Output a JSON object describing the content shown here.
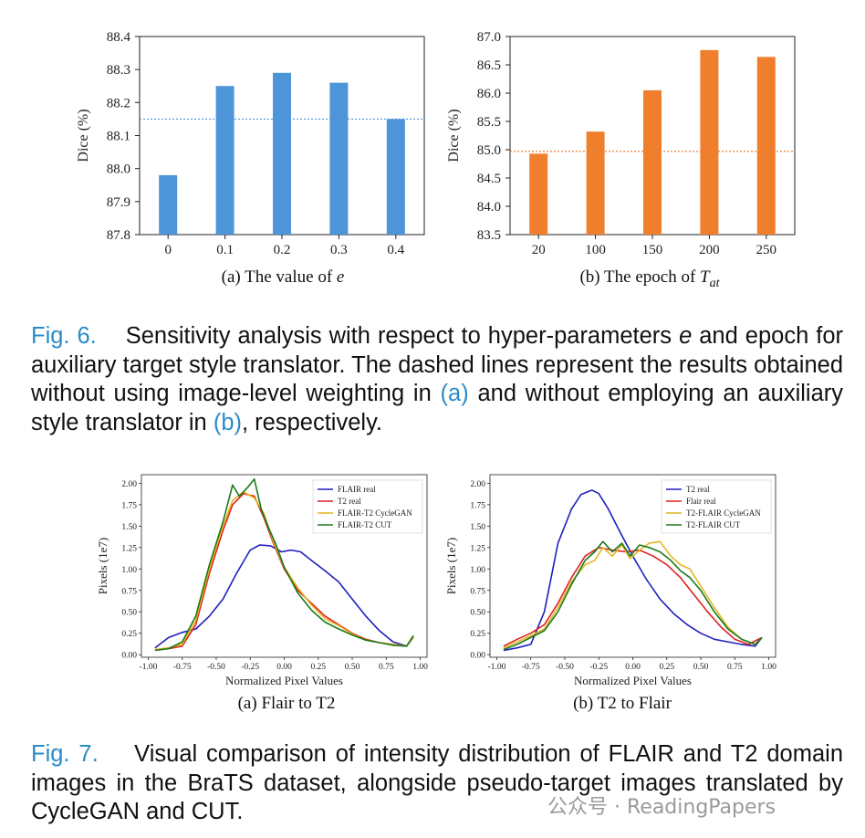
{
  "fig6": {
    "charts": [
      {
        "id": "a",
        "caption": "(a) The value of ",
        "caption_var": "e",
        "ylabel": "Dice (%)",
        "color": "#4e94d8",
        "baseline": 88.15,
        "ylim": [
          87.8,
          88.4
        ],
        "yticks": [
          "87.8",
          "87.9",
          "88.0",
          "88.1",
          "88.2",
          "88.3",
          "88.4"
        ],
        "categories": [
          "0",
          "0.1",
          "0.2",
          "0.3",
          "0.4"
        ],
        "values": [
          87.98,
          88.25,
          88.29,
          88.26,
          88.15
        ]
      },
      {
        "id": "b",
        "caption": "(b) The epoch of ",
        "caption_var": "T",
        "caption_sub": "at",
        "ylabel": "Dice (%)",
        "color": "#f07f2d",
        "baseline": 84.97,
        "ylim": [
          83.5,
          87.0
        ],
        "yticks": [
          "83.5",
          "84.0",
          "84.5",
          "85.0",
          "85.5",
          "86.0",
          "86.5",
          "87.0"
        ],
        "categories": [
          "20",
          "100",
          "150",
          "200",
          "250"
        ],
        "values": [
          84.93,
          85.32,
          86.05,
          86.76,
          86.64
        ]
      }
    ],
    "caption_label": "Fig. 6.",
    "caption_pre": "Sensitivity analysis with respect to hyper-parameters",
    "caption_var": "e",
    "caption_mid": "and epoch for auxiliary target style translator. The dashed lines represent the results obtained without using image-level weighting in",
    "caption_ref_a": "(a)",
    "caption_mid2": "and without employing an auxiliary style translator in",
    "caption_ref_b": "(b)",
    "caption_post": ", respectively."
  },
  "fig7": {
    "charts": [
      {
        "id": "a",
        "caption": "(a) Flair to T2",
        "xlabel": "Normalized Pixel Values",
        "ylabel": "Pixels (1e7)",
        "xticks": [
          "-1.00",
          "-0.75",
          "-0.50",
          "-0.25",
          "0.00",
          "0.25",
          "0.50",
          "0.75",
          "1.00"
        ],
        "yticks": [
          "0.00",
          "0.25",
          "0.50",
          "0.75",
          "1.00",
          "1.25",
          "1.50",
          "1.75",
          "2.00"
        ],
        "xlim": [
          -1.05,
          1.05
        ],
        "ylim": [
          -0.03,
          2.1
        ],
        "series": [
          {
            "name": "FLAIR real",
            "color": "#1f1fbf",
            "x": [
              -0.95,
              -0.85,
              -0.75,
              -0.65,
              -0.55,
              -0.45,
              -0.35,
              -0.25,
              -0.18,
              -0.1,
              -0.02,
              0.05,
              0.12,
              0.2,
              0.3,
              0.4,
              0.5,
              0.6,
              0.7,
              0.8,
              0.9,
              0.95
            ],
            "y": [
              0.08,
              0.2,
              0.26,
              0.3,
              0.45,
              0.65,
              0.95,
              1.22,
              1.28,
              1.27,
              1.2,
              1.22,
              1.2,
              1.1,
              0.98,
              0.85,
              0.65,
              0.45,
              0.28,
              0.15,
              0.1,
              0.2
            ]
          },
          {
            "name": "T2 real",
            "color": "#e02020",
            "x": [
              -0.95,
              -0.85,
              -0.75,
              -0.65,
              -0.55,
              -0.45,
              -0.38,
              -0.3,
              -0.22,
              -0.15,
              -0.08,
              0.0,
              0.1,
              0.2,
              0.3,
              0.4,
              0.5,
              0.6,
              0.7,
              0.8,
              0.9,
              0.95
            ],
            "y": [
              0.06,
              0.07,
              0.1,
              0.35,
              0.95,
              1.45,
              1.75,
              1.88,
              1.85,
              1.6,
              1.3,
              1.0,
              0.75,
              0.6,
              0.45,
              0.35,
              0.25,
              0.18,
              0.14,
              0.12,
              0.1,
              0.22
            ]
          },
          {
            "name": "FLAIR-T2 CycleGAN",
            "color": "#e6b422",
            "x": [
              -0.95,
              -0.85,
              -0.75,
              -0.65,
              -0.55,
              -0.45,
              -0.38,
              -0.3,
              -0.22,
              -0.15,
              -0.08,
              0.0,
              0.1,
              0.2,
              0.3,
              0.4,
              0.5,
              0.6,
              0.7,
              0.8,
              0.9,
              0.95
            ],
            "y": [
              0.06,
              0.08,
              0.12,
              0.4,
              1.0,
              1.5,
              1.8,
              1.9,
              1.83,
              1.65,
              1.32,
              1.02,
              0.78,
              0.58,
              0.42,
              0.34,
              0.24,
              0.17,
              0.14,
              0.12,
              0.1,
              0.2
            ]
          },
          {
            "name": "FLAIR-T2 CUT",
            "color": "#1a7a1a",
            "x": [
              -0.95,
              -0.85,
              -0.75,
              -0.65,
              -0.55,
              -0.45,
              -0.38,
              -0.33,
              -0.27,
              -0.22,
              -0.17,
              -0.12,
              -0.06,
              0.0,
              0.1,
              0.2,
              0.3,
              0.4,
              0.5,
              0.6,
              0.7,
              0.8,
              0.9,
              0.95
            ],
            "y": [
              0.05,
              0.07,
              0.15,
              0.45,
              1.05,
              1.55,
              1.98,
              1.85,
              1.95,
              2.05,
              1.7,
              1.5,
              1.28,
              1.02,
              0.72,
              0.52,
              0.38,
              0.3,
              0.23,
              0.17,
              0.14,
              0.11,
              0.1,
              0.22
            ]
          }
        ]
      },
      {
        "id": "b",
        "caption": "(b) T2 to Flair",
        "xlabel": "Normalized Pixel Values",
        "ylabel": "Pixels (1e7)",
        "xticks": [
          "-1.00",
          "-0.75",
          "-0.50",
          "-0.25",
          "0.00",
          "0.25",
          "0.50",
          "0.75",
          "1.00"
        ],
        "yticks": [
          "0.00",
          "0.25",
          "0.50",
          "0.75",
          "1.00",
          "1.25",
          "1.50",
          "1.75",
          "2.00"
        ],
        "xlim": [
          -1.05,
          1.05
        ],
        "ylim": [
          -0.03,
          2.1
        ],
        "series": [
          {
            "name": "T2 real",
            "color": "#1f1fbf",
            "x": [
              -0.95,
              -0.85,
              -0.75,
              -0.65,
              -0.55,
              -0.45,
              -0.38,
              -0.3,
              -0.25,
              -0.18,
              -0.1,
              0.0,
              0.1,
              0.2,
              0.3,
              0.4,
              0.5,
              0.6,
              0.7,
              0.8,
              0.9,
              0.95
            ],
            "y": [
              0.05,
              0.08,
              0.12,
              0.5,
              1.3,
              1.7,
              1.87,
              1.92,
              1.88,
              1.7,
              1.45,
              1.15,
              0.88,
              0.65,
              0.48,
              0.35,
              0.25,
              0.18,
              0.15,
              0.12,
              0.1,
              0.2
            ]
          },
          {
            "name": "Flair real",
            "color": "#e02020",
            "x": [
              -0.95,
              -0.85,
              -0.75,
              -0.65,
              -0.55,
              -0.45,
              -0.35,
              -0.25,
              -0.15,
              -0.05,
              0.05,
              0.15,
              0.25,
              0.35,
              0.45,
              0.55,
              0.65,
              0.75,
              0.85,
              0.95
            ],
            "y": [
              0.1,
              0.18,
              0.25,
              0.35,
              0.6,
              0.9,
              1.15,
              1.25,
              1.22,
              1.2,
              1.22,
              1.15,
              1.05,
              0.9,
              0.7,
              0.5,
              0.32,
              0.18,
              0.12,
              0.2
            ]
          },
          {
            "name": "T2-FLAIR CycleGAN",
            "color": "#e6b422",
            "x": [
              -0.95,
              -0.85,
              -0.75,
              -0.65,
              -0.55,
              -0.45,
              -0.35,
              -0.28,
              -0.22,
              -0.15,
              -0.08,
              -0.02,
              0.05,
              0.12,
              0.2,
              0.28,
              0.35,
              0.42,
              0.5,
              0.6,
              0.7,
              0.8,
              0.9,
              0.95
            ],
            "y": [
              0.08,
              0.15,
              0.22,
              0.3,
              0.55,
              0.85,
              1.05,
              1.1,
              1.25,
              1.15,
              1.28,
              1.12,
              1.22,
              1.3,
              1.32,
              1.15,
              1.05,
              1.0,
              0.8,
              0.55,
              0.32,
              0.18,
              0.12,
              0.2
            ]
          },
          {
            "name": "T2-FLAIR CUT",
            "color": "#1a7a1a",
            "x": [
              -0.95,
              -0.85,
              -0.75,
              -0.65,
              -0.55,
              -0.45,
              -0.35,
              -0.28,
              -0.22,
              -0.15,
              -0.08,
              -0.02,
              0.05,
              0.12,
              0.2,
              0.28,
              0.35,
              0.42,
              0.5,
              0.6,
              0.7,
              0.8,
              0.9,
              0.95
            ],
            "y": [
              0.06,
              0.12,
              0.2,
              0.28,
              0.5,
              0.82,
              1.1,
              1.2,
              1.32,
              1.2,
              1.3,
              1.15,
              1.28,
              1.25,
              1.2,
              1.1,
              0.98,
              0.9,
              0.75,
              0.5,
              0.3,
              0.18,
              0.12,
              0.2
            ]
          }
        ]
      }
    ],
    "caption_label": "Fig. 7.",
    "caption_text": "Visual comparison of intensity distribution of FLAIR and T2 domain images in the BraTS dataset, alongside pseudo-target images translated by CycleGAN and CUT."
  },
  "watermark": "公众号 · ReadingPapers"
}
